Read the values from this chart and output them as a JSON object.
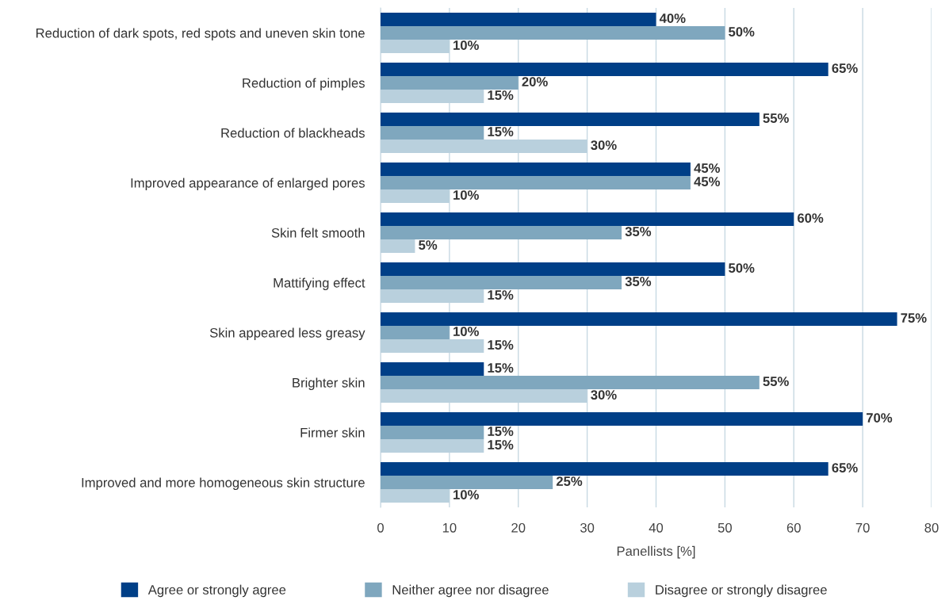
{
  "chart_data": {
    "type": "bar",
    "orientation": "horizontal",
    "xlabel": "Panellists [%]",
    "categories": [
      "Reduction of dark spots, red spots and uneven skin tone",
      "Reduction of pimples",
      "Reduction of blackheads",
      "Improved appearance of enlarged pores",
      "Skin felt smooth",
      "Mattifying effect",
      "Skin appeared less greasy",
      "Brighter skin",
      "Firmer skin",
      "Improved and more homogeneous skin structure"
    ],
    "series": [
      {
        "name": "Agree or strongly agree",
        "color": "#003f87",
        "values": [
          40,
          65,
          55,
          45,
          60,
          50,
          75,
          15,
          70,
          65
        ],
        "value_labels": [
          "40%",
          "65%",
          "55%",
          "45%",
          "60%",
          "50%",
          "75%",
          "15%",
          "70%",
          "65%"
        ]
      },
      {
        "name": "Neither agree nor disagree",
        "color": "#7fa7be",
        "values": [
          50,
          20,
          15,
          45,
          35,
          35,
          10,
          55,
          15,
          25
        ],
        "value_labels": [
          "50%",
          "20%",
          "15%",
          "45%",
          "35%",
          "35%",
          "10%",
          "55%",
          "15%",
          "25%"
        ]
      },
      {
        "name": "Disagree or strongly disagree",
        "color": "#b9d0dd",
        "values": [
          10,
          15,
          30,
          10,
          5,
          15,
          15,
          30,
          15,
          10
        ],
        "value_labels": [
          "10%",
          "15%",
          "30%",
          "10%",
          "5%",
          "15%",
          "15%",
          "30%",
          "15%",
          "10%"
        ]
      }
    ],
    "xlim": [
      0,
      80
    ],
    "xticks": [
      0,
      10,
      20,
      30,
      40,
      50,
      60,
      70,
      80
    ],
    "grid": "x",
    "legend": "bottom"
  }
}
